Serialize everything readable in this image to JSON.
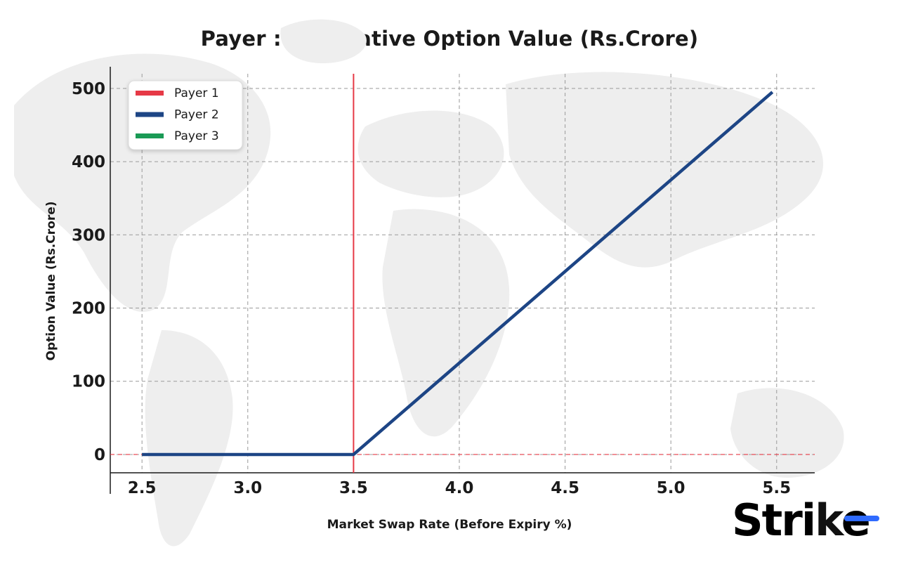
{
  "chart_data": {
    "type": "line",
    "title": "Payer : Illustrative Option Value (Rs.Crore)",
    "xlabel": "Market Swap Rate (Before Expiry %)",
    "ylabel": "Option Value (Rs.Crore)",
    "xlim": [
      2.35,
      5.68
    ],
    "ylim": [
      -25,
      520
    ],
    "x_ticks": [
      "2.5",
      "3.0",
      "3.5",
      "4.0",
      "4.5",
      "5.0",
      "5.5"
    ],
    "y_ticks": [
      "0",
      "100",
      "200",
      "300",
      "400",
      "500"
    ],
    "grid": true,
    "legend_position": "top-left",
    "series": [
      {
        "name": "Payer 1",
        "color": "#e63946",
        "style": "vertical-line",
        "x": [
          3.5,
          3.5
        ],
        "y": [
          -25,
          520
        ]
      },
      {
        "name": "Payer 2",
        "color": "#1d4585",
        "style": "line",
        "x": [
          2.5,
          3.5,
          5.48
        ],
        "y": [
          0,
          0,
          495
        ]
      },
      {
        "name": "Payer 3",
        "color": "#1a9a55",
        "style": "line",
        "x": [],
        "y": []
      }
    ],
    "reference_lines": [
      {
        "axis": "y",
        "value": 0,
        "color": "#e63946",
        "style": "dashed"
      }
    ]
  },
  "logo": {
    "text_main": "Stri",
    "text_end": "e",
    "color_main": "#111111",
    "color_accent": "#2f6bff"
  }
}
